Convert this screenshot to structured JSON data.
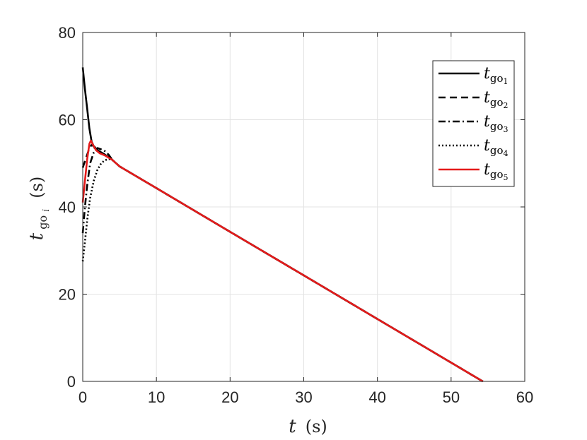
{
  "chart_data": {
    "type": "line",
    "xlabel": {
      "var": "t",
      "unit": "(s)"
    },
    "ylabel": {
      "var": "t",
      "sub": "go",
      "subsub": "i",
      "unit": "(s)"
    },
    "xlim": [
      0,
      60
    ],
    "ylim": [
      0,
      80
    ],
    "xticks": [
      "0",
      "10",
      "20",
      "30",
      "40",
      "50",
      "60"
    ],
    "yticks": [
      "0",
      "20",
      "40",
      "60",
      "80"
    ],
    "grid": true,
    "legend_position": "top-right",
    "series": [
      {
        "name": "t_go_1",
        "label_var": "t",
        "label_sub": "go",
        "label_subsub": "1",
        "color": "#000000",
        "dash": "solid",
        "x": [
          0,
          0.3,
          0.6,
          0.9,
          1.2,
          1.6,
          2.0,
          2.5,
          3.0,
          4.0,
          5.0,
          10,
          20,
          30,
          40,
          50,
          54.3
        ],
        "y": [
          72,
          67,
          62.5,
          58,
          55,
          53.5,
          53,
          52.5,
          52,
          50.8,
          49.3,
          44.3,
          34.3,
          24.3,
          14.3,
          4.3,
          0
        ]
      },
      {
        "name": "t_go_2",
        "label_var": "t",
        "label_sub": "go",
        "label_subsub": "2",
        "color": "#000000",
        "dash": "dashed",
        "x": [
          0,
          0.3,
          0.6,
          0.9,
          1.2,
          1.6,
          2.0,
          2.5,
          3.0,
          4.0,
          5.0,
          10,
          20,
          30,
          40,
          50,
          54.3
        ],
        "y": [
          49,
          50.5,
          52,
          53.5,
          54.2,
          53.8,
          53,
          52.5,
          52,
          50.8,
          49.3,
          44.3,
          34.3,
          24.3,
          14.3,
          4.3,
          0
        ]
      },
      {
        "name": "t_go_3",
        "label_var": "t",
        "label_sub": "go",
        "label_subsub": "3",
        "color": "#000000",
        "dash": "dashdot",
        "x": [
          0,
          0.3,
          0.6,
          1.0,
          1.5,
          2.0,
          2.5,
          3.0,
          3.5,
          4.0,
          5.0,
          10,
          20,
          30,
          40,
          50,
          54.3
        ],
        "y": [
          34,
          40,
          45,
          50,
          52.5,
          53.5,
          53.2,
          52.8,
          52,
          50.8,
          49.3,
          44.3,
          34.3,
          24.3,
          14.3,
          4.3,
          0
        ]
      },
      {
        "name": "t_go_4",
        "label_var": "t",
        "label_sub": "go",
        "label_subsub": "4",
        "color": "#000000",
        "dash": "dotted",
        "x": [
          0,
          0.3,
          0.6,
          1.0,
          1.5,
          2.0,
          2.5,
          3.0,
          3.5,
          4.0,
          5.0,
          10,
          20,
          30,
          40,
          50,
          54.3
        ],
        "y": [
          27.5,
          32,
          37,
          42,
          46,
          48.5,
          50,
          50.7,
          51,
          50.8,
          49.3,
          44.3,
          34.3,
          24.3,
          14.3,
          4.3,
          0
        ]
      },
      {
        "name": "t_go_5",
        "label_var": "t",
        "label_sub": "go",
        "label_subsub": "5",
        "color": "#e41a1a",
        "dash": "solid",
        "x": [
          0,
          0.3,
          0.6,
          0.9,
          1.1,
          1.4,
          1.8,
          2.3,
          3.0,
          4.0,
          5.0,
          10,
          20,
          30,
          40,
          50,
          54.3
        ],
        "y": [
          41,
          46,
          51,
          54.5,
          55.2,
          54.2,
          53,
          52.3,
          51.8,
          50.8,
          49.3,
          44.3,
          34.3,
          24.3,
          14.3,
          4.3,
          0
        ]
      }
    ]
  }
}
